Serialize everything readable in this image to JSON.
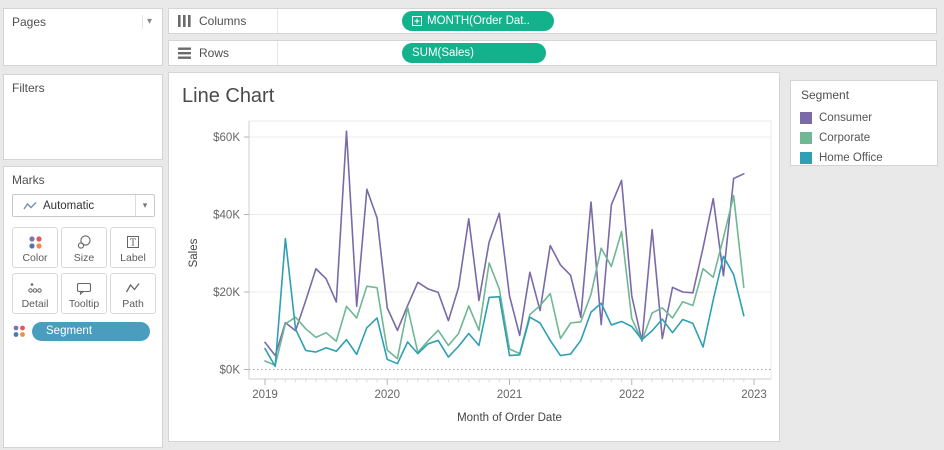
{
  "pages": {
    "title": "Pages"
  },
  "filters": {
    "title": "Filters"
  },
  "marks": {
    "title": "Marks",
    "mark_type_label": "Automatic",
    "buttons": [
      "Color",
      "Size",
      "Label",
      "Detail",
      "Tooltip",
      "Path"
    ],
    "pill_label": "Segment"
  },
  "shelves": {
    "columns_label": "Columns",
    "rows_label": "Rows",
    "columns_pill": "MONTH(Order Dat..",
    "rows_pill": "SUM(Sales)",
    "pill_color": "#12b38c"
  },
  "worksheet": {
    "title": "Line Chart"
  },
  "legend": {
    "title": "Segment",
    "items": [
      {
        "label": "Consumer",
        "color": "#7b6aa8"
      },
      {
        "label": "Corporate",
        "color": "#6fb795"
      },
      {
        "label": "Home Office",
        "color": "#2e9fb4"
      }
    ]
  },
  "chart_data": {
    "type": "line",
    "title": "Line Chart",
    "xlabel": "Month of Order Date",
    "ylabel": "Sales",
    "x_start": "2019-01",
    "x_interval": "month",
    "x_tick_labels": [
      "2019",
      "2020",
      "2021",
      "2022",
      "2023"
    ],
    "y_tick_labels": [
      "$0K",
      "$20K",
      "$40K",
      "$60K"
    ],
    "y_tick_values": [
      0,
      20,
      40,
      60
    ],
    "ylim": [
      0,
      65
    ],
    "y_unit": "USD thousands",
    "grid": "horizontal",
    "legend_position": "right",
    "series": [
      {
        "name": "Consumer",
        "color": "#7b6aa8",
        "values": [
          7.0,
          3.6,
          12.1,
          10.0,
          17.8,
          26.0,
          23.4,
          17.4,
          61.5,
          16.3,
          46.5,
          39.1,
          15.9,
          10.1,
          16.5,
          22.5,
          20.8,
          19.9,
          12.6,
          21.2,
          38.9,
          17.8,
          32.9,
          40.3,
          19.0,
          8.8,
          25.1,
          15.2,
          32.0,
          27.0,
          24.3,
          13.5,
          43.2,
          11.6,
          42.5,
          48.8,
          19.0,
          7.3,
          36.1,
          8.0,
          21.2,
          20.0,
          19.8,
          31.4,
          44.1,
          24.2,
          49.3,
          50.5
        ]
      },
      {
        "name": "Corporate",
        "color": "#6fb795",
        "values": [
          2.2,
          1.1,
          11.8,
          13.5,
          10.5,
          8.3,
          9.5,
          7.3,
          16.3,
          13.3,
          21.5,
          21.1,
          5.0,
          2.8,
          16.0,
          4.4,
          7.4,
          10.1,
          6.2,
          9.3,
          16.4,
          10.1,
          27.5,
          20.8,
          5.3,
          4.1,
          14.2,
          16.5,
          19.6,
          8.0,
          12.0,
          12.3,
          19.4,
          31.3,
          26.6,
          35.6,
          13.2,
          7.4,
          14.6,
          15.9,
          13.3,
          17.5,
          16.5,
          26.0,
          23.8,
          34.0,
          44.9,
          21.2
        ]
      },
      {
        "name": "Home Office",
        "color": "#2e9fb4",
        "values": [
          5.4,
          0.8,
          33.8,
          10.4,
          4.9,
          4.5,
          5.6,
          4.7,
          7.7,
          3.9,
          10.8,
          13.3,
          2.6,
          1.5,
          7.1,
          4.1,
          6.6,
          7.5,
          3.2,
          6.0,
          9.3,
          6.2,
          18.6,
          18.8,
          3.6,
          3.8,
          13.5,
          12.0,
          7.5,
          3.6,
          4.0,
          7.5,
          14.8,
          17.1,
          11.5,
          12.4,
          11.1,
          7.7,
          10.0,
          13.0,
          9.5,
          12.9,
          11.9,
          5.8,
          18.0,
          29.2,
          24.5,
          13.9
        ]
      }
    ]
  }
}
